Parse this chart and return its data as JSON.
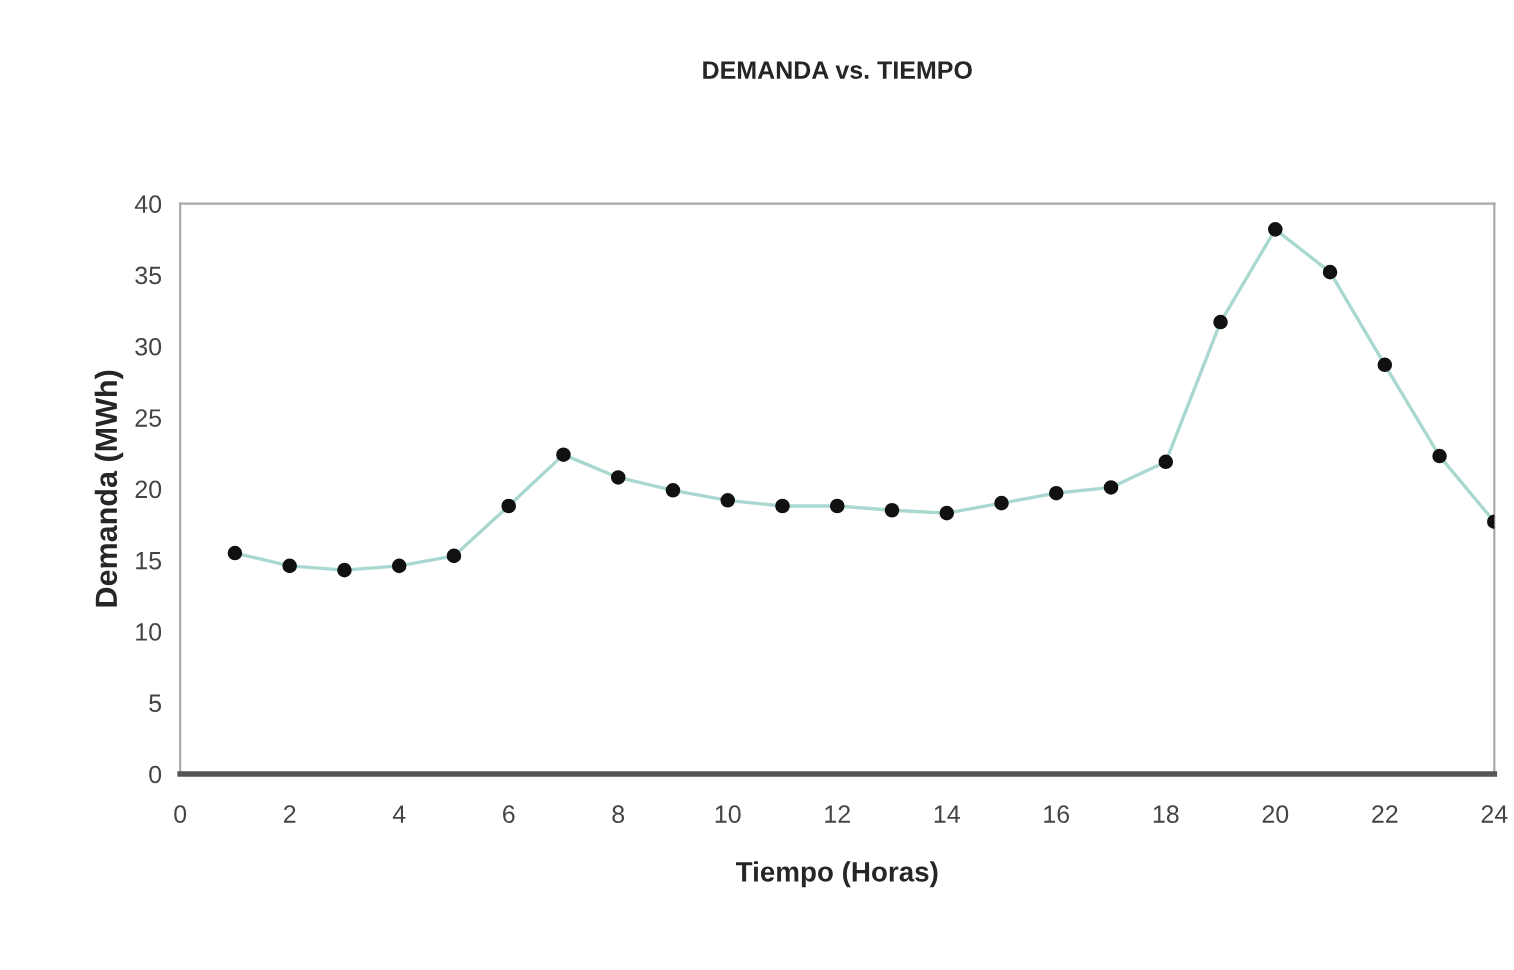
{
  "chart_data": {
    "type": "line",
    "title": "DEMANDA vs. TIEMPO",
    "xlabel": "Tiempo (Horas)",
    "ylabel": "Demanda (MWh)",
    "x": [
      1,
      2,
      3,
      4,
      5,
      6,
      7,
      8,
      9,
      10,
      11,
      12,
      13,
      14,
      15,
      16,
      17,
      18,
      19,
      20,
      21,
      22,
      23,
      24
    ],
    "series": [
      {
        "color": "#a8d8d0",
        "values": [
          15.5,
          14.6,
          14.3,
          14.6,
          15.3,
          18.8,
          22.4,
          20.8,
          19.9,
          19.2,
          18.8,
          18.8,
          18.5,
          18.3,
          19.0,
          19.7,
          20.1,
          21.9,
          31.7,
          38.2,
          35.2,
          28.7,
          22.3,
          17.7
        ]
      }
    ],
    "marker": "circle",
    "line_style": "solid",
    "grid": false,
    "legend": false,
    "xlim": [
      0,
      24
    ],
    "xticks": [
      0,
      2,
      4,
      6,
      8,
      10,
      12,
      14,
      16,
      18,
      20,
      22,
      24
    ],
    "ylim": [
      0,
      40
    ],
    "yticks": [
      0,
      5,
      10,
      15,
      20,
      25,
      30,
      35,
      40
    ]
  }
}
